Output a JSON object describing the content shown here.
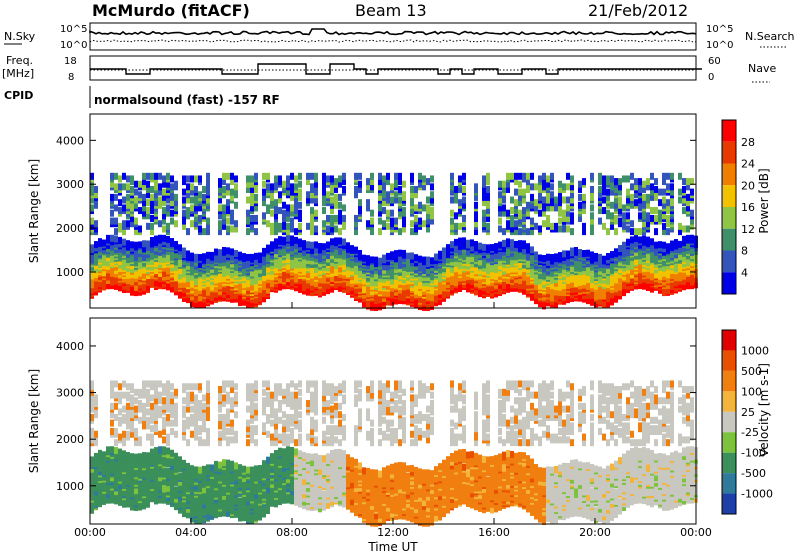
{
  "header": {
    "station": "McMurdo (fitACF)",
    "beam": "Beam 13",
    "date": "21/Feb/2012"
  },
  "status_panel": {
    "nsky_label": "N.Sky",
    "nsearch_label": "N.Search",
    "nsky_ticks": [
      "10^5",
      "10^0"
    ],
    "nsearch_ticks": [
      "10^5",
      "10^0"
    ],
    "freq_label_1": "Freq.",
    "freq_label_2": "[MHz]",
    "freq_ticks": [
      "18",
      "8"
    ],
    "nave_label": "Nave",
    "nave_ticks": [
      "60",
      "0"
    ],
    "cpid_label": "CPID",
    "cpid_value": "normalsound (fast) -157 RF"
  },
  "chart_data": [
    {
      "type": "heatmap",
      "name": "power",
      "ylabel": "Slant Range [km]",
      "yticks": [
        "1000",
        "2000",
        "3000",
        "4000"
      ],
      "ylim": [
        180,
        4600
      ],
      "xlim_hours": [
        0,
        24
      ],
      "colorbar_label": "Power [dB]",
      "colorbar_ticks": [
        "4",
        "8",
        "12",
        "16",
        "20",
        "24",
        "28"
      ],
      "colors": [
        "#0000e6",
        "#3355bb",
        "#3f8f6a",
        "#8fc444",
        "#f2c200",
        "#f07f00",
        "#e83a00",
        "#ff0000"
      ]
    },
    {
      "type": "heatmap",
      "name": "velocity",
      "ylabel": "Slant Range [km]",
      "yticks": [
        "1000",
        "2000",
        "3000",
        "4000"
      ],
      "ylim": [
        180,
        4600
      ],
      "xlim_hours": [
        0,
        24
      ],
      "xlabel": "Time UT",
      "xticks": [
        "00:00",
        "04:00",
        "08:00",
        "12:00",
        "16:00",
        "20:00",
        "00:00"
      ],
      "colorbar_label": "Velocity [m s-1]",
      "colorbar_ticks": [
        "1000",
        "500",
        "100",
        "25",
        "-25",
        "-100",
        "-500",
        "-1000"
      ],
      "colors": [
        "#1c3fa8",
        "#2f7a9a",
        "#3a8f5a",
        "#7cc23c",
        "#c8c8c0",
        "#f2b43a",
        "#f07f10",
        "#e85000",
        "#e00000"
      ]
    }
  ]
}
